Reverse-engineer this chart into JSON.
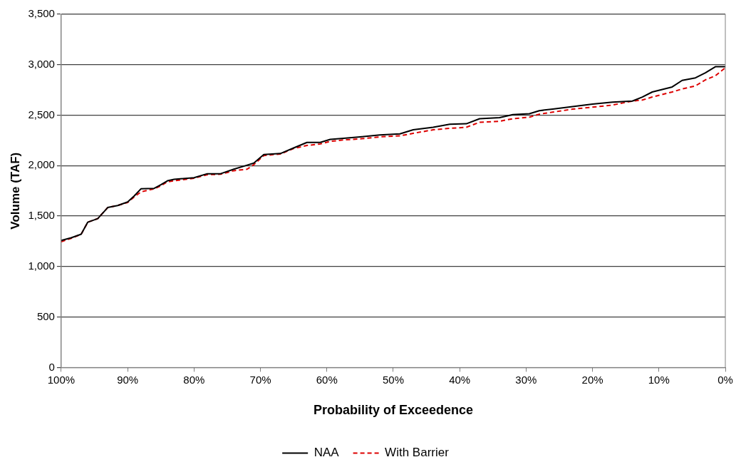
{
  "chart_data": {
    "type": "line",
    "xlabel": "Probability of Exceedence",
    "ylabel": "Volume (TAF)",
    "xlim": [
      100,
      0
    ],
    "xticks": [
      {
        "value": 100,
        "label": "100%"
      },
      {
        "value": 90,
        "label": "90%"
      },
      {
        "value": 80,
        "label": "80%"
      },
      {
        "value": 70,
        "label": "70%"
      },
      {
        "value": 60,
        "label": "60%"
      },
      {
        "value": 50,
        "label": "50%"
      },
      {
        "value": 40,
        "label": "40%"
      },
      {
        "value": 30,
        "label": "30%"
      },
      {
        "value": 20,
        "label": "20%"
      },
      {
        "value": 10,
        "label": "10%"
      },
      {
        "value": 0,
        "label": "0%"
      }
    ],
    "ylim": [
      0,
      3500
    ],
    "yticks": [
      {
        "value": 0,
        "label": "0"
      },
      {
        "value": 500,
        "label": "500"
      },
      {
        "value": 1000,
        "label": "1,000"
      },
      {
        "value": 1500,
        "label": "1,500"
      },
      {
        "value": 2000,
        "label": "2,000"
      },
      {
        "value": 2500,
        "label": "2,500"
      },
      {
        "value": 3000,
        "label": "3,000"
      },
      {
        "value": 3500,
        "label": "3,500"
      }
    ],
    "grid": "y",
    "legend": "bottom",
    "marker": "none",
    "x": [
      100,
      98.5,
      97,
      96,
      94.5,
      93,
      91.5,
      90,
      89,
      88,
      86,
      85,
      84,
      83,
      80,
      78,
      76,
      74,
      72,
      71,
      69.5,
      67,
      65,
      63,
      61,
      59.5,
      57.5,
      55,
      52,
      49,
      47,
      44,
      41.5,
      39,
      37,
      34,
      32,
      29.5,
      28,
      26,
      23,
      20,
      17,
      14,
      12.5,
      11,
      9.5,
      8,
      6.5,
      4.5,
      3,
      1.5,
      0
    ],
    "series": [
      {
        "name": "NAA",
        "color": "#000000",
        "line_style": "solid",
        "values": [
          1258,
          1285,
          1320,
          1440,
          1475,
          1585,
          1605,
          1640,
          1700,
          1770,
          1775,
          1810,
          1850,
          1865,
          1880,
          1920,
          1920,
          1965,
          2005,
          2025,
          2110,
          2120,
          2175,
          2230,
          2230,
          2260,
          2270,
          2285,
          2305,
          2315,
          2355,
          2380,
          2410,
          2415,
          2465,
          2475,
          2505,
          2515,
          2545,
          2560,
          2585,
          2610,
          2630,
          2640,
          2680,
          2730,
          2755,
          2780,
          2845,
          2870,
          2920,
          2980,
          2980
        ]
      },
      {
        "name": "With Barrier",
        "color": "#dd0000",
        "line_style": "dashed",
        "values": [
          1245,
          1280,
          1320,
          1440,
          1475,
          1585,
          1605,
          1635,
          1690,
          1740,
          1770,
          1800,
          1840,
          1850,
          1875,
          1910,
          1915,
          1950,
          1965,
          2010,
          2100,
          2115,
          2170,
          2200,
          2215,
          2240,
          2255,
          2265,
          2285,
          2295,
          2320,
          2355,
          2370,
          2380,
          2430,
          2440,
          2465,
          2480,
          2510,
          2530,
          2560,
          2580,
          2600,
          2640,
          2650,
          2680,
          2705,
          2730,
          2760,
          2790,
          2850,
          2890,
          2970
        ]
      }
    ]
  }
}
